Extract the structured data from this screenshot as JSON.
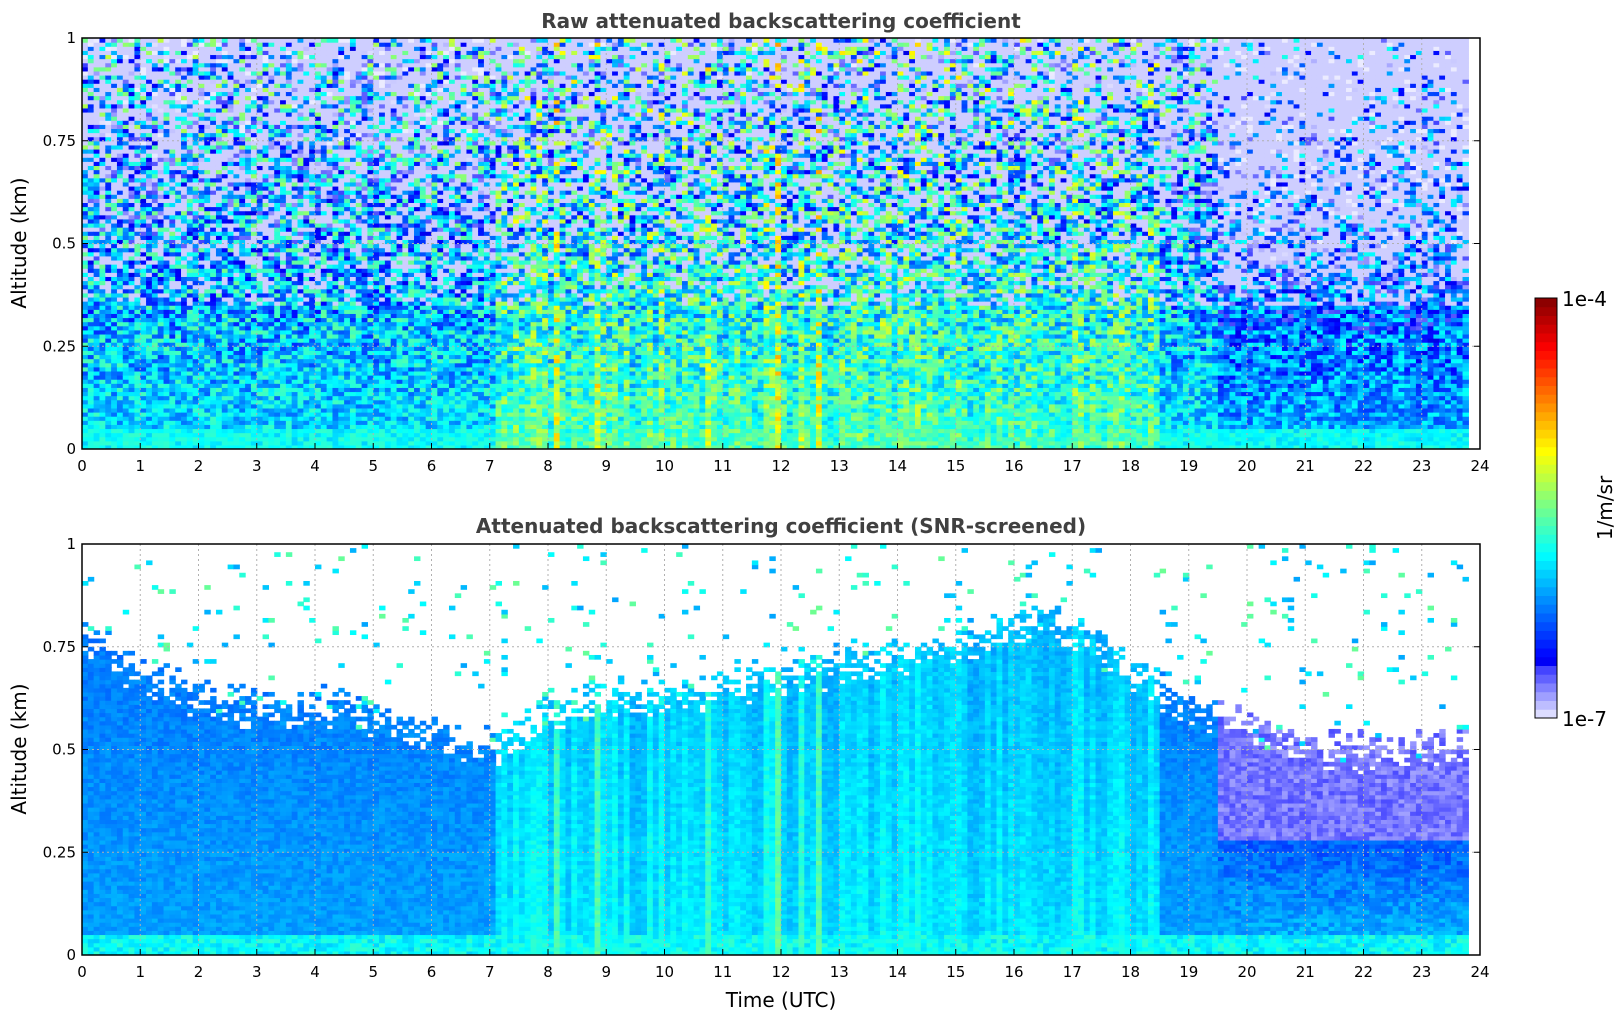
{
  "chart_data": [
    {
      "type": "heatmap",
      "title": "Raw attenuated backscattering coefficient",
      "xlabel": "",
      "ylabel": "Altitude (km)",
      "xlim": [
        0,
        24
      ],
      "ylim": [
        0,
        1
      ],
      "x_ticks": [
        "0",
        "1",
        "2",
        "3",
        "4",
        "5",
        "6",
        "7",
        "8",
        "9",
        "10",
        "11",
        "12",
        "13",
        "14",
        "15",
        "16",
        "17",
        "18",
        "19",
        "20",
        "21",
        "22",
        "23",
        "24"
      ],
      "y_ticks": [
        "0",
        "0.25",
        "0.5",
        "0.75",
        "1"
      ],
      "grid": true,
      "data_end_time": 23.8,
      "field": "raw_backscatter",
      "colorscale": "jet_log",
      "noise_level": 0.55
    },
    {
      "type": "heatmap",
      "title": "Attenuated backscattering coefficient (SNR-screened)",
      "xlabel": "Time (UTC)",
      "ylabel": "Altitude (km)",
      "xlim": [
        0,
        24
      ],
      "ylim": [
        0,
        1
      ],
      "x_ticks": [
        "0",
        "1",
        "2",
        "3",
        "4",
        "5",
        "6",
        "7",
        "8",
        "9",
        "10",
        "11",
        "12",
        "13",
        "14",
        "15",
        "16",
        "17",
        "18",
        "19",
        "20",
        "21",
        "22",
        "23",
        "24"
      ],
      "y_ticks": [
        "0",
        "0.25",
        "0.5",
        "0.75",
        "1"
      ],
      "grid": true,
      "data_end_time": 23.8,
      "field": "screened_backscatter",
      "colorscale": "jet_log",
      "boundary_layer_top_km": [
        [
          0,
          0.78
        ],
        [
          1,
          0.68
        ],
        [
          2,
          0.63
        ],
        [
          3,
          0.6
        ],
        [
          4,
          0.6
        ],
        [
          5,
          0.58
        ],
        [
          6,
          0.53
        ],
        [
          7,
          0.5
        ],
        [
          8,
          0.58
        ],
        [
          9,
          0.62
        ],
        [
          10,
          0.62
        ],
        [
          11,
          0.65
        ],
        [
          12,
          0.68
        ],
        [
          13,
          0.7
        ],
        [
          14,
          0.73
        ],
        [
          15,
          0.75
        ],
        [
          16,
          0.8
        ],
        [
          17,
          0.8
        ],
        [
          18,
          0.7
        ],
        [
          19,
          0.6
        ],
        [
          20,
          0.55
        ],
        [
          21,
          0.5
        ],
        [
          22,
          0.5
        ],
        [
          23,
          0.5
        ],
        [
          23.8,
          0.5
        ]
      ]
    }
  ],
  "colorbar": {
    "label": "1/m/sr",
    "max_label": "1e-4",
    "min_label": "1e-7",
    "scale": "log",
    "range": [
      1e-07,
      0.0001
    ],
    "colors": [
      "#ffffff",
      "#0000ff",
      "#00ffff",
      "#ffff00",
      "#ff0000",
      "#800000"
    ]
  }
}
